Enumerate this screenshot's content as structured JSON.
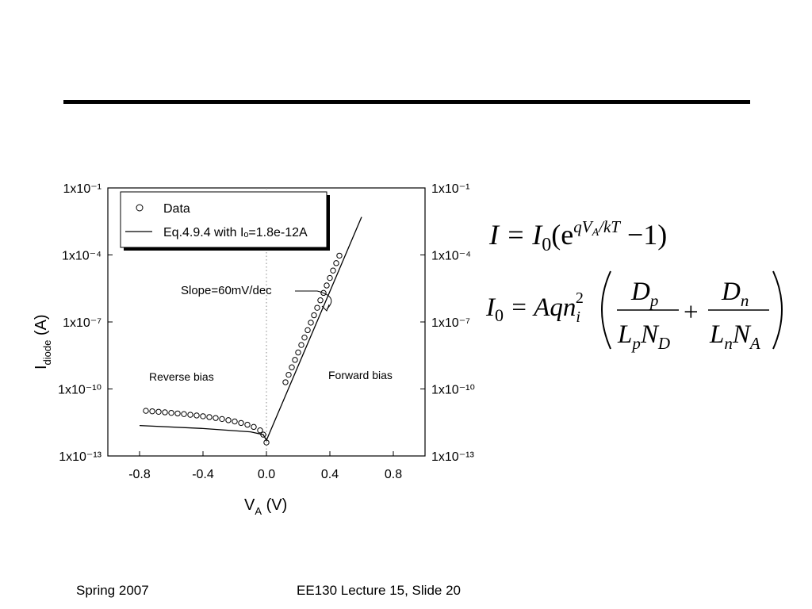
{
  "chart_data": {
    "type": "scatter",
    "ylabel": "I",
    "ylabel_sub": "diode",
    "ylabel_suffix": " (A)",
    "xlabel": "V",
    "xlabel_sub": "A",
    "xlabel_suffix": " (V)",
    "xlim": [
      -1.0,
      1.0
    ],
    "xticks": [
      -0.8,
      -0.4,
      {
        "value": 0,
        "label": "0.0"
      },
      0.4,
      0.8
    ],
    "ylim": [
      1e-13,
      0.1
    ],
    "log_y": true,
    "yticks": [
      {
        "value": 1e-13,
        "label": "1x10⁻¹³"
      },
      {
        "value": 1e-10,
        "label": "1x10⁻¹⁰"
      },
      {
        "value": 1e-07,
        "label": "1x10⁻⁷"
      },
      {
        "value": 0.0001,
        "label": "1x10⁻⁴"
      },
      {
        "value": 0.1,
        "label": "1x10⁻¹"
      }
    ],
    "legend": "upper left",
    "annotations": [
      "Slope=60mV/dec",
      "Reverse bias",
      "Forward bias"
    ],
    "series": [
      {
        "name": "Data",
        "color": "#000000",
        "marker": "circle",
        "x": [
          -0.76,
          -0.72,
          -0.68,
          -0.64,
          -0.6,
          -0.56,
          -0.52,
          -0.48,
          -0.44,
          -0.4,
          -0.36,
          -0.32,
          -0.28,
          -0.24,
          -0.2,
          -0.16,
          -0.12,
          -0.08,
          -0.04,
          -0.02,
          0.0,
          0.12,
          0.14,
          0.16,
          0.18,
          0.2,
          0.22,
          0.24,
          0.26,
          0.28,
          0.3,
          0.32,
          0.34,
          0.36,
          0.38,
          0.4,
          0.42,
          0.44,
          0.46
        ],
        "values": [
          1.05e-11,
          1e-11,
          9.5e-12,
          9e-12,
          8.5e-12,
          8e-12,
          7.5e-12,
          7e-12,
          6.5e-12,
          6e-12,
          5.5e-12,
          5e-12,
          4.5e-12,
          4e-12,
          3.5e-12,
          3e-12,
          2.5e-12,
          2e-12,
          1.4e-12,
          9e-13,
          4e-13,
          2e-10,
          4.3e-10,
          9.3e-10,
          2e-09,
          4.3e-09,
          9.3e-09,
          2e-08,
          4.3e-08,
          9.3e-08,
          2e-07,
          4.3e-07,
          9.3e-07,
          2e-06,
          4.3e-06,
          9.3e-06,
          2e-05,
          4.3e-05,
          9.3e-05
        ]
      },
      {
        "name": "Eq.4.9.4 with Iₒ=1.8e-12A",
        "color": "#000000",
        "marker": "line",
        "x": [
          -0.8,
          -0.4,
          -0.1,
          -0.02,
          0.0,
          0.3,
          0.6
        ],
        "values": [
          2.3e-12,
          1.7e-12,
          1.2e-12,
          9e-13,
          5e-13,
          5e-08,
          0.005
        ]
      }
    ]
  },
  "equation_1": [
    "I = I",
    "0",
    "(e",
    "qV",
    "A",
    "/kT",
    " −1)"
  ],
  "equation_2": {
    "lhs": [
      "I",
      "0",
      " = Aqn",
      "i",
      "2"
    ],
    "fraction_1": {
      "numerator": [
        "D",
        "p"
      ],
      "denominator": [
        "L",
        "p",
        "N",
        "D"
      ]
    },
    "plus": "+",
    "fraction_2": {
      "numerator": [
        "D",
        "n"
      ],
      "denominator": [
        "L",
        "n",
        "N",
        "A"
      ]
    }
  },
  "footer": {
    "left": "Spring 2007",
    "center": "EE130 Lecture 15, Slide 20"
  }
}
